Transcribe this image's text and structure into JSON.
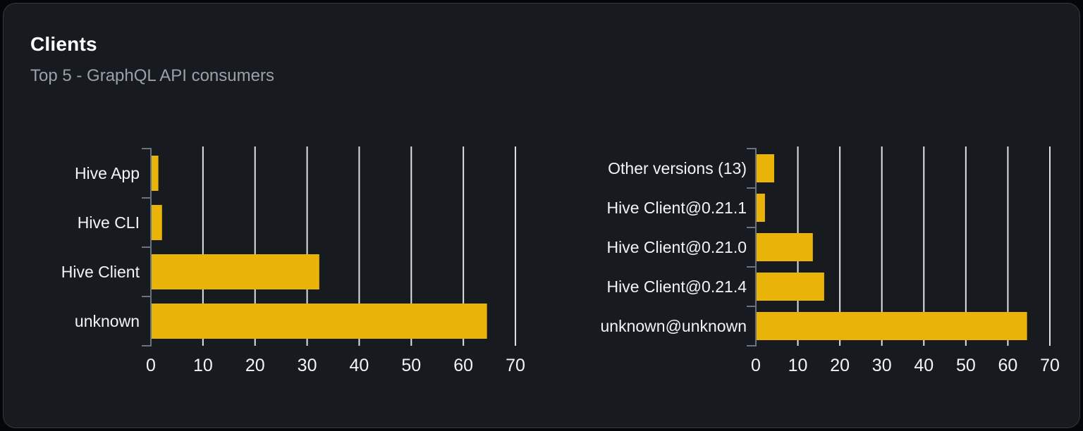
{
  "card": {
    "title": "Clients",
    "subtitle": "Top 5 - GraphQL API consumers"
  },
  "colors": {
    "page_background": "#050607",
    "card_background": "#171a1f",
    "card_border": "#34383f",
    "bar": "#eab308",
    "grid": "#dde2e8",
    "axis": "#6b7280",
    "tick_label": "#f3f4f6",
    "category_label": "#f3f4f6",
    "title": "#ffffff",
    "subtitle": "#9aa1ab"
  },
  "chart_data": [
    {
      "type": "bar",
      "orientation": "horizontal",
      "name": "clients-by-name",
      "categories": [
        "Hive App",
        "Hive CLI",
        "Hive Client",
        "unknown"
      ],
      "values": [
        1.3,
        2.0,
        32.2,
        64.4
      ],
      "xlim": [
        0,
        70
      ],
      "xticks": [
        0,
        10,
        20,
        30,
        40,
        50,
        60,
        70
      ],
      "grid": "vertical",
      "legend": "none",
      "bar_color": "#eab308"
    },
    {
      "type": "bar",
      "orientation": "horizontal",
      "name": "clients-by-version",
      "categories": [
        "Other versions (13)",
        "Hive Client@0.21.1",
        "Hive Client@0.21.0",
        "Hive Client@0.21.4",
        "unknown@unknown"
      ],
      "values": [
        4.2,
        2.0,
        13.4,
        16.1,
        64.4
      ],
      "xlim": [
        0,
        70
      ],
      "xticks": [
        0,
        10,
        20,
        30,
        40,
        50,
        60,
        70
      ],
      "grid": "vertical",
      "legend": "none",
      "bar_color": "#eab308"
    }
  ]
}
